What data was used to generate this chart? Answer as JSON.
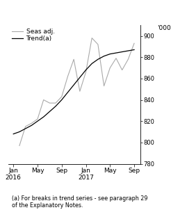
{
  "ylabel": "'000",
  "ylim": [
    780,
    910
  ],
  "yticks": [
    780,
    800,
    820,
    840,
    860,
    880,
    900
  ],
  "footnote": "(a) For breaks in trend series - see paragraph 29\nof the Explanatory Notes.",
  "legend_trend": "Trend(a)",
  "legend_seas": "Seas adj.",
  "trend_color": "#000000",
  "seas_color": "#aaaaaa",
  "background_color": "#ffffff",
  "x_tick_labels": [
    "Jan\n2016",
    "May",
    "Sep",
    "Jan\n2017",
    "May",
    "Sep"
  ],
  "x_tick_positions": [
    0,
    4,
    8,
    12,
    16,
    20
  ],
  "xlim": [
    -0.8,
    21.0
  ],
  "trend_x": [
    0,
    1,
    2,
    3,
    4,
    5,
    6,
    7,
    8,
    9,
    10,
    11,
    12,
    13,
    14,
    15,
    16,
    17,
    18,
    19,
    20
  ],
  "trend_y": [
    808,
    810,
    813,
    816,
    820,
    824,
    829,
    834,
    840,
    847,
    854,
    861,
    868,
    874,
    878,
    881,
    883,
    884,
    885,
    886,
    887
  ],
  "seas_x": [
    1,
    2,
    3,
    4,
    5,
    6,
    7,
    8,
    9,
    10,
    11,
    12,
    13,
    14,
    15,
    16,
    17,
    18,
    19,
    20
  ],
  "seas_y": [
    797,
    815,
    818,
    822,
    840,
    837,
    837,
    843,
    862,
    878,
    848,
    866,
    898,
    892,
    853,
    870,
    879,
    868,
    878,
    893
  ]
}
